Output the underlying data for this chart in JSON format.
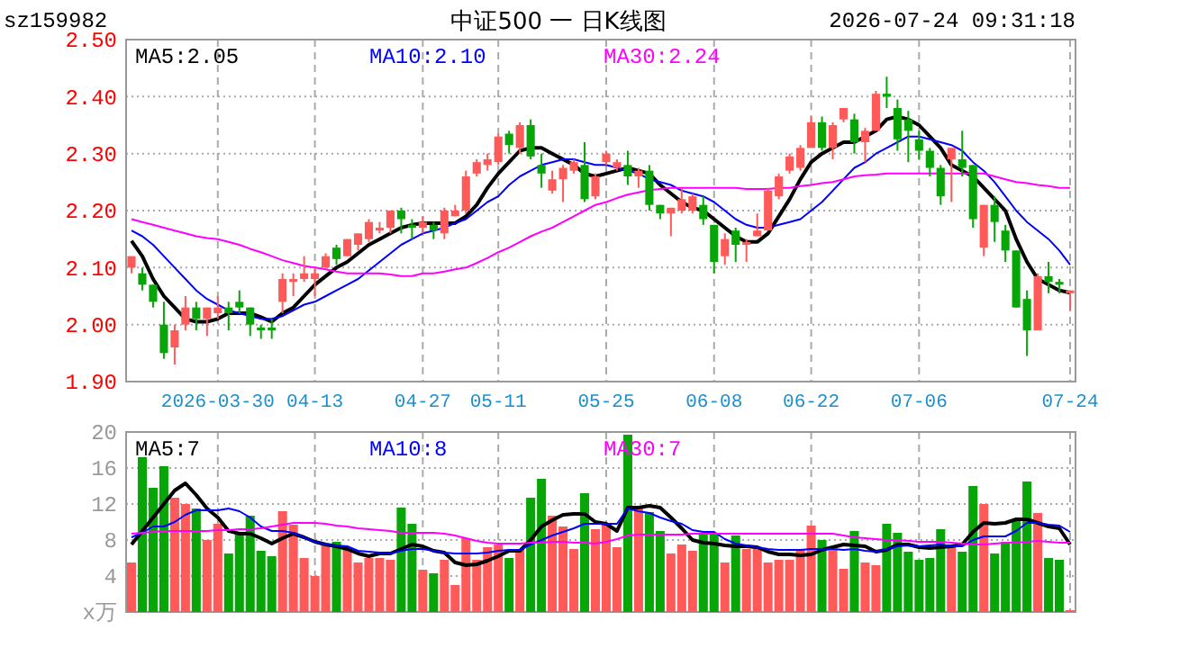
{
  "chart_data": [
    {
      "type": "candlestick",
      "title": "中证500 一 日K线图",
      "annotations": [
        "sz159982",
        "2026-07-24 09:31:18"
      ],
      "categories": [
        null,
        null,
        null,
        null,
        null,
        null,
        null,
        null,
        "2026-03-30",
        null,
        null,
        null,
        null,
        null,
        null,
        null,
        null,
        "04-13",
        null,
        null,
        null,
        null,
        null,
        null,
        null,
        null,
        null,
        "04-27",
        null,
        null,
        null,
        null,
        null,
        null,
        "05-11",
        null,
        null,
        null,
        null,
        null,
        null,
        null,
        null,
        null,
        "05-25",
        null,
        null,
        null,
        null,
        null,
        null,
        null,
        null,
        null,
        "06-08",
        null,
        null,
        null,
        null,
        null,
        null,
        null,
        null,
        "06-22",
        null,
        null,
        null,
        null,
        null,
        null,
        null,
        null,
        null,
        "07-06",
        null,
        null,
        null,
        null,
        null,
        null,
        null,
        null,
        null,
        null,
        null,
        null,
        null,
        "07-24"
      ],
      "ohlc": [
        [
          2.1,
          2.12,
          2.09,
          2.12
        ],
        [
          2.09,
          2.1,
          2.06,
          2.07
        ],
        [
          2.07,
          2.07,
          2.03,
          2.04
        ],
        [
          2.0,
          2.04,
          1.94,
          1.95
        ],
        [
          1.96,
          2.0,
          1.93,
          1.99
        ],
        [
          2.0,
          2.05,
          1.99,
          2.03
        ],
        [
          2.03,
          2.04,
          1.99,
          2.01
        ],
        [
          2.01,
          2.03,
          1.98,
          2.03
        ],
        [
          2.02,
          2.05,
          2.01,
          2.03
        ],
        [
          2.03,
          2.04,
          1.99,
          2.02
        ],
        [
          2.04,
          2.06,
          2.02,
          2.03
        ],
        [
          2.03,
          2.03,
          1.98,
          2.0
        ],
        [
          1.995,
          2.0,
          1.975,
          1.99
        ],
        [
          1.995,
          2.01,
          1.975,
          1.99
        ],
        [
          2.04,
          2.09,
          2.02,
          2.08
        ],
        [
          2.075,
          2.09,
          2.05,
          2.08
        ],
        [
          2.08,
          2.12,
          2.075,
          2.09
        ],
        [
          2.08,
          2.1,
          2.05,
          2.09
        ],
        [
          2.1,
          2.125,
          2.1,
          2.12
        ],
        [
          2.135,
          2.14,
          2.105,
          2.115
        ],
        [
          2.12,
          2.15,
          2.12,
          2.15
        ],
        [
          2.14,
          2.16,
          2.13,
          2.16
        ],
        [
          2.15,
          2.185,
          2.145,
          2.18
        ],
        [
          2.165,
          2.18,
          2.16,
          2.17
        ],
        [
          2.17,
          2.2,
          2.16,
          2.2
        ],
        [
          2.2,
          2.205,
          2.16,
          2.185
        ],
        [
          2.175,
          2.185,
          2.15,
          2.17
        ],
        [
          2.17,
          2.19,
          2.16,
          2.18
        ],
        [
          2.175,
          2.18,
          2.15,
          2.165
        ],
        [
          2.16,
          2.205,
          2.15,
          2.2
        ],
        [
          2.19,
          2.21,
          2.19,
          2.2
        ],
        [
          2.2,
          2.27,
          2.195,
          2.26
        ],
        [
          2.265,
          2.29,
          2.26,
          2.285
        ],
        [
          2.28,
          2.3,
          2.27,
          2.29
        ],
        [
          2.285,
          2.335,
          2.28,
          2.33
        ],
        [
          2.335,
          2.34,
          2.3,
          2.315
        ],
        [
          2.31,
          2.355,
          2.3,
          2.35
        ],
        [
          2.35,
          2.36,
          2.29,
          2.295
        ],
        [
          2.28,
          2.3,
          2.24,
          2.265
        ],
        [
          2.235,
          2.27,
          2.23,
          2.255
        ],
        [
          2.255,
          2.28,
          2.215,
          2.275
        ],
        [
          2.27,
          2.29,
          2.265,
          2.285
        ],
        [
          2.28,
          2.32,
          2.215,
          2.22
        ],
        [
          2.225,
          2.265,
          2.22,
          2.26
        ],
        [
          2.285,
          2.305,
          2.28,
          2.3
        ],
        [
          2.275,
          2.29,
          2.27,
          2.285
        ],
        [
          2.28,
          2.305,
          2.245,
          2.26
        ],
        [
          2.26,
          2.275,
          2.24,
          2.27
        ],
        [
          2.27,
          2.28,
          2.2,
          2.21
        ],
        [
          2.21,
          2.21,
          2.185,
          2.195
        ],
        [
          2.195,
          2.205,
          2.155,
          2.205
        ],
        [
          2.2,
          2.24,
          2.195,
          2.22
        ],
        [
          2.2,
          2.23,
          2.195,
          2.225
        ],
        [
          2.21,
          2.225,
          2.175,
          2.185
        ],
        [
          2.175,
          2.175,
          2.09,
          2.11
        ],
        [
          2.12,
          2.16,
          2.105,
          2.15
        ],
        [
          2.165,
          2.17,
          2.11,
          2.14
        ],
        [
          2.14,
          2.15,
          2.11,
          2.145
        ],
        [
          2.155,
          2.195,
          2.155,
          2.165
        ],
        [
          2.165,
          2.24,
          2.165,
          2.235
        ],
        [
          2.225,
          2.265,
          2.22,
          2.26
        ],
        [
          2.27,
          2.3,
          2.265,
          2.295
        ],
        [
          2.275,
          2.315,
          2.27,
          2.31
        ],
        [
          2.31,
          2.365,
          2.31,
          2.355
        ],
        [
          2.355,
          2.365,
          2.305,
          2.31
        ],
        [
          2.31,
          2.355,
          2.29,
          2.35
        ],
        [
          2.36,
          2.38,
          2.355,
          2.38
        ],
        [
          2.36,
          2.37,
          2.3,
          2.32
        ],
        [
          2.32,
          2.345,
          2.285,
          2.34
        ],
        [
          2.34,
          2.41,
          2.34,
          2.405
        ],
        [
          2.405,
          2.435,
          2.38,
          2.4
        ],
        [
          2.38,
          2.395,
          2.305,
          2.325
        ],
        [
          2.36,
          2.375,
          2.285,
          2.34
        ],
        [
          2.325,
          2.34,
          2.29,
          2.305
        ],
        [
          2.305,
          2.31,
          2.26,
          2.275
        ],
        [
          2.275,
          2.28,
          2.21,
          2.225
        ],
        [
          2.29,
          2.31,
          2.215,
          2.31
        ],
        [
          2.29,
          2.34,
          2.26,
          2.275
        ],
        [
          2.28,
          2.28,
          2.17,
          2.185
        ],
        [
          2.135,
          2.21,
          2.12,
          2.21
        ],
        [
          2.21,
          2.225,
          2.145,
          2.18
        ],
        [
          2.165,
          2.175,
          2.11,
          2.13
        ],
        [
          2.13,
          2.13,
          2.03,
          2.03
        ],
        [
          2.045,
          2.06,
          1.945,
          1.99
        ],
        [
          1.99,
          2.09,
          1.99,
          2.085
        ],
        [
          2.085,
          2.11,
          2.055,
          2.075
        ],
        [
          2.075,
          2.08,
          2.055,
          2.07
        ],
        [
          2.055,
          2.06,
          2.025,
          2.06
        ]
      ],
      "series": [
        {
          "type": "line",
          "name": "MA5:2.05",
          "color": "#000000",
          "values": [
            2.147,
            2.12,
            2.08,
            2.05,
            2.03,
            2.01,
            2.005,
            2.005,
            2.01,
            2.02,
            2.02,
            2.02,
            2.013,
            2.005,
            2.02,
            2.03,
            2.05,
            2.07,
            2.085,
            2.1,
            2.11,
            2.125,
            2.14,
            2.15,
            2.16,
            2.17,
            2.175,
            2.178,
            2.178,
            2.178,
            2.178,
            2.19,
            2.21,
            2.24,
            2.265,
            2.285,
            2.305,
            2.31,
            2.31,
            2.3,
            2.29,
            2.28,
            2.265,
            2.26,
            2.265,
            2.27,
            2.275,
            2.27,
            2.265,
            2.245,
            2.23,
            2.215,
            2.205,
            2.2,
            2.185,
            2.17,
            2.155,
            2.145,
            2.145,
            2.16,
            2.19,
            2.22,
            2.255,
            2.285,
            2.3,
            2.31,
            2.32,
            2.32,
            2.33,
            2.34,
            2.36,
            2.365,
            2.36,
            2.35,
            2.33,
            2.31,
            2.28,
            2.27,
            2.26,
            2.24,
            2.22,
            2.2,
            2.15,
            2.11,
            2.08,
            2.07,
            2.06,
            2.056
          ]
        },
        {
          "type": "line",
          "name": "MA10:2.10",
          "color": "#0000ff",
          "values": [
            2.165,
            2.155,
            2.14,
            2.12,
            2.1,
            2.08,
            2.06,
            2.045,
            2.035,
            2.025,
            2.02,
            2.015,
            2.01,
            2.01,
            2.015,
            2.025,
            2.035,
            2.04,
            2.05,
            2.06,
            2.07,
            2.08,
            2.095,
            2.11,
            2.125,
            2.14,
            2.15,
            2.16,
            2.165,
            2.17,
            2.178,
            2.185,
            2.2,
            2.215,
            2.225,
            2.245,
            2.26,
            2.27,
            2.28,
            2.285,
            2.29,
            2.29,
            2.285,
            2.28,
            2.28,
            2.275,
            2.27,
            2.265,
            2.255,
            2.25,
            2.245,
            2.235,
            2.23,
            2.225,
            2.215,
            2.2,
            2.185,
            2.175,
            2.17,
            2.17,
            2.175,
            2.18,
            2.185,
            2.2,
            2.215,
            2.235,
            2.255,
            2.275,
            2.285,
            2.3,
            2.31,
            2.32,
            2.33,
            2.33,
            2.325,
            2.32,
            2.315,
            2.305,
            2.285,
            2.27,
            2.25,
            2.225,
            2.2,
            2.18,
            2.165,
            2.15,
            2.13,
            2.105
          ]
        },
        {
          "type": "line",
          "name": "MA30:2.24",
          "color": "#ff00ff",
          "values": [
            2.185,
            2.18,
            2.175,
            2.17,
            2.165,
            2.16,
            2.155,
            2.152,
            2.15,
            2.145,
            2.14,
            2.133,
            2.127,
            2.12,
            2.113,
            2.108,
            2.103,
            2.1,
            2.097,
            2.093,
            2.09,
            2.09,
            2.09,
            2.09,
            2.088,
            2.085,
            2.085,
            2.09,
            2.09,
            2.093,
            2.097,
            2.1,
            2.108,
            2.117,
            2.127,
            2.135,
            2.145,
            2.155,
            2.163,
            2.17,
            2.18,
            2.19,
            2.2,
            2.21,
            2.215,
            2.222,
            2.228,
            2.232,
            2.236,
            2.238,
            2.24,
            2.24,
            2.24,
            2.24,
            2.24,
            2.24,
            2.24,
            2.238,
            2.238,
            2.238,
            2.24,
            2.24,
            2.243,
            2.245,
            2.248,
            2.25,
            2.255,
            2.26,
            2.262,
            2.263,
            2.265,
            2.265,
            2.265,
            2.265,
            2.265,
            2.265,
            2.265,
            2.265,
            2.265,
            2.265,
            2.26,
            2.255,
            2.25,
            2.248,
            2.245,
            2.243,
            2.24,
            2.24
          ]
        }
      ],
      "ylim": [
        1.9,
        2.5
      ],
      "yticks": [
        {
          "value": 1.9,
          "label": "1.90"
        },
        {
          "value": 2.0,
          "label": "2.00"
        },
        {
          "value": 2.1,
          "label": "2.10"
        },
        {
          "value": 2.2,
          "label": "2.20"
        },
        {
          "value": 2.3,
          "label": "2.30"
        },
        {
          "value": 2.4,
          "label": "2.40"
        },
        {
          "value": 2.5,
          "label": "2.50"
        }
      ],
      "grid": true,
      "legend": "top left"
    },
    {
      "type": "bar",
      "tick_labels": "y",
      "categories": [
        null,
        null,
        null,
        null,
        null,
        null,
        null,
        null,
        null,
        null,
        null,
        null,
        null,
        null,
        null,
        null,
        null,
        null,
        null,
        null,
        null,
        null,
        null,
        null,
        null,
        null,
        null,
        null,
        null,
        null,
        null,
        null,
        null,
        null,
        null,
        null,
        null,
        null,
        null,
        null,
        null,
        null,
        null,
        null,
        null,
        null,
        null,
        null,
        null,
        null,
        null,
        null,
        null,
        null,
        null,
        null,
        null,
        null,
        null,
        null,
        null,
        null,
        null,
        null,
        null,
        null,
        null,
        null,
        null,
        null,
        null,
        null,
        null,
        null,
        null,
        null,
        null,
        null,
        null,
        null,
        null,
        null,
        null,
        null,
        null,
        null,
        null,
        null
      ],
      "values": [
        5.5,
        17.2,
        13.8,
        16.2,
        12.7,
        12,
        11.5,
        8,
        9.8,
        6.5,
        8.8,
        10.7,
        6.8,
        6.2,
        11.2,
        9.7,
        6,
        4,
        7.5,
        7.8,
        7,
        5.5,
        6,
        6,
        5.8,
        11.6,
        9.8,
        4.7,
        4.3,
        5.8,
        3,
        8.2,
        5.8,
        7.2,
        7.5,
        6,
        7,
        12.7,
        14.8,
        10.7,
        9.5,
        7,
        13.2,
        9.2,
        9.9,
        7.2,
        19.7,
        11.5,
        11.1,
        9,
        6.5,
        7.5,
        6.8,
        8.8,
        8.8,
        5.5,
        8.5,
        7,
        7.1,
        5.5,
        5.8,
        5.8,
        7,
        9.6,
        8,
        6.9,
        4.8,
        9,
        5.5,
        5.2,
        9.8,
        8.8,
        6.7,
        5.8,
        6,
        9.2,
        7.5,
        6.7,
        14,
        12,
        6.5,
        7.8,
        10.2,
        14.5,
        11,
        6,
        5.8,
        0.2
      ],
      "colors": [
        "#ff5a5a",
        "#08a508",
        "#08a508",
        "#08a508",
        "#ff5a5a",
        "#ff5a5a",
        "#08a508",
        "#ff5a5a",
        "#ff5a5a",
        "#08a508",
        "#08a508",
        "#08a508",
        "#08a508",
        "#08a508",
        "#ff5a5a",
        "#ff5a5a",
        "#ff5a5a",
        "#ff5a5a",
        "#ff5a5a",
        "#08a508",
        "#ff5a5a",
        "#ff5a5a",
        "#ff5a5a",
        "#ff5a5a",
        "#ff5a5a",
        "#08a508",
        "#08a508",
        "#ff5a5a",
        "#08a508",
        "#ff5a5a",
        "#ff5a5a",
        "#ff5a5a",
        "#ff5a5a",
        "#ff5a5a",
        "#ff5a5a",
        "#08a508",
        "#ff5a5a",
        "#08a508",
        "#08a508",
        "#ff5a5a",
        "#ff5a5a",
        "#ff5a5a",
        "#08a508",
        "#ff5a5a",
        "#ff5a5a",
        "#ff5a5a",
        "#08a508",
        "#ff5a5a",
        "#08a508",
        "#08a508",
        "#ff5a5a",
        "#ff5a5a",
        "#ff5a5a",
        "#08a508",
        "#08a508",
        "#ff5a5a",
        "#08a508",
        "#ff5a5a",
        "#ff5a5a",
        "#ff5a5a",
        "#ff5a5a",
        "#ff5a5a",
        "#ff5a5a",
        "#ff5a5a",
        "#08a508",
        "#ff5a5a",
        "#ff5a5a",
        "#08a508",
        "#ff5a5a",
        "#ff5a5a",
        "#08a508",
        "#08a508",
        "#08a508",
        "#08a508",
        "#08a508",
        "#08a508",
        "#ff5a5a",
        "#08a508",
        "#08a508",
        "#ff5a5a",
        "#08a508",
        "#08a508",
        "#08a508",
        "#08a508",
        "#ff5a5a",
        "#08a508",
        "#08a508",
        "#ff5a5a"
      ],
      "series": [
        {
          "type": "line",
          "name": "MA5:7",
          "color": "#000000",
          "values": [
            7.5,
            9,
            10.5,
            12,
            13.5,
            14.3,
            13,
            11.5,
            10.5,
            9,
            8.7,
            8.7,
            8.2,
            7.6,
            8.2,
            8.7,
            8.3,
            7.8,
            7.5,
            7.3,
            7,
            6.5,
            6.2,
            6.5,
            6.5,
            7,
            7.5,
            7.3,
            6.8,
            6.6,
            5.5,
            5.2,
            5.3,
            5.7,
            6.2,
            6.8,
            6.8,
            8,
            9.5,
            10.2,
            10.8,
            10.9,
            10.9,
            10,
            9.8,
            9,
            11.6,
            11.6,
            11.8,
            11.6,
            10.5,
            9.3,
            8,
            7.7,
            7.6,
            7.4,
            7.3,
            7.3,
            7.2,
            6.7,
            6.4,
            6.4,
            6.3,
            6.4,
            6.9,
            7.2,
            7.5,
            7.4,
            7.3,
            6.7,
            6.9,
            7.5,
            7.5,
            7.2,
            7.1,
            7.2,
            7.3,
            7.5,
            8.9,
            9.9,
            9.8,
            9.9,
            10.3,
            10.3,
            9.9,
            9.5,
            9.3,
            7.5
          ]
        },
        {
          "type": "line",
          "name": "MA10:8",
          "color": "#0000ff",
          "values": [
            8.3,
            8.8,
            9.5,
            9.5,
            10,
            10.8,
            11.3,
            11.3,
            11.3,
            11.5,
            11.2,
            10.5,
            9.5,
            9,
            9,
            8.8,
            8.3,
            7.8,
            7.5,
            7.4,
            7.3,
            6.8,
            6.7,
            6.6,
            6.5,
            6.8,
            7,
            7,
            6.8,
            6.6,
            6.5,
            6.5,
            6.5,
            6.6,
            6.8,
            6.9,
            6.9,
            7.5,
            8,
            8.5,
            8.9,
            9.3,
            9.8,
            9.8,
            9.8,
            9.8,
            11.5,
            11.2,
            11,
            10.5,
            10.1,
            9.8,
            9.1,
            8.9,
            8.9,
            8.1,
            7.6,
            7.4,
            7.2,
            7,
            6.9,
            6.9,
            6.9,
            7,
            7,
            7,
            6.9,
            7,
            6.8,
            6.7,
            7,
            7.3,
            7.4,
            7.3,
            7.4,
            7.5,
            7.3,
            7.3,
            8,
            8.4,
            8.4,
            8.4,
            9,
            9.9,
            9.9,
            9.7,
            9.6,
            8.9
          ]
        },
        {
          "type": "line",
          "name": "MA30:7",
          "color": "#ff00ff",
          "values": [
            8.7,
            8.8,
            8.9,
            9,
            9,
            9,
            9,
            9,
            9.1,
            9.1,
            9.2,
            9.2,
            9.3,
            9.5,
            9.7,
            9.9,
            9.9,
            9.9,
            9.8,
            9.6,
            9.5,
            9.3,
            9.2,
            9.1,
            9,
            8.8,
            8.8,
            8.8,
            8.8,
            8.7,
            8.5,
            8.2,
            7.9,
            7.7,
            7.6,
            7.6,
            7.6,
            7.7,
            7.7,
            7.8,
            7.8,
            7.7,
            7.7,
            7.6,
            7.8,
            8.1,
            8.5,
            8.6,
            8.6,
            8.6,
            8.6,
            8.6,
            8.7,
            8.7,
            8.7,
            8.7,
            8.7,
            8.7,
            8.7,
            8.7,
            8.7,
            8.7,
            8.7,
            8.7,
            8.7,
            8.7,
            8.5,
            8.3,
            8.2,
            8.1,
            8,
            8,
            7.9,
            7.8,
            7.8,
            7.8,
            7.7,
            7.6,
            7.5,
            7.5,
            7.6,
            7.7,
            7.7,
            7.8,
            7.9,
            7.8,
            7.7,
            7.7
          ]
        }
      ],
      "ylim": [
        0,
        20
      ],
      "yticks": [
        {
          "value": 0,
          "label": "x万"
        },
        4,
        8,
        12,
        16,
        20
      ],
      "grid": true,
      "legend": "top left"
    }
  ]
}
